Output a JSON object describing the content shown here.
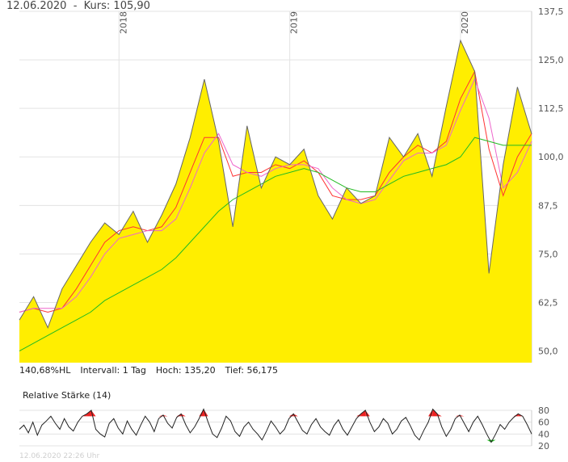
{
  "header": {
    "date": "12.06.2020",
    "separator": "-",
    "price_label": "Kurs: 105,90"
  },
  "info": {
    "range": "140,68%HL",
    "interval": "Intervall: 1 Tag",
    "high": "Hoch: 135,20",
    "low": "Tief: 56,175"
  },
  "rsi_title": "Relative Stärke (14)",
  "footer_timestamp": "12.06.2020 22:26 Uhr",
  "colors": {
    "area": "#ffee00",
    "price_line": "#666666",
    "ma_short": "#ff3333",
    "ma_mid": "#ee66cc",
    "ma_long": "#22bb22",
    "grid": "#e3e3e3",
    "rsi_line": "#222222",
    "rsi_overbought": "#ee2222",
    "rsi_oversold": "#22bb22"
  },
  "chart_data": [
    {
      "type": "area",
      "x_ticks": [
        "2018",
        "2019",
        "2020"
      ],
      "y_ticks": [
        "137,5",
        "125,0",
        "112,5",
        "100,0",
        "87,5",
        "75,0",
        "62,5",
        "50,0"
      ],
      "ylim": [
        47,
        137.5
      ],
      "x": [
        "2017-06",
        "2017-07",
        "2017-08",
        "2017-09",
        "2017-10",
        "2017-11",
        "2017-12",
        "2018-01",
        "2018-02",
        "2018-03",
        "2018-04",
        "2018-05",
        "2018-06",
        "2018-07",
        "2018-08",
        "2018-09",
        "2018-10",
        "2018-11",
        "2018-12",
        "2019-01",
        "2019-02",
        "2019-03",
        "2019-04",
        "2019-05",
        "2019-06",
        "2019-07",
        "2019-08",
        "2019-09",
        "2019-10",
        "2019-11",
        "2019-12",
        "2020-01",
        "2020-02",
        "2020-03",
        "2020-04",
        "2020-05",
        "2020-06"
      ],
      "year_ticks_at": [
        "2018-01",
        "2019-01",
        "2020-01"
      ],
      "series": [
        {
          "values": [
            58,
            64,
            56,
            66,
            72,
            78,
            83,
            80,
            86,
            78,
            85,
            93,
            105,
            120,
            104,
            82,
            108,
            92,
            100,
            98,
            102,
            90,
            84,
            92,
            88,
            90,
            105,
            100,
            106,
            95,
            113,
            130,
            122,
            70,
            98,
            118,
            105.9
          ]
        },
        {
          "values": [
            60,
            61,
            60,
            61,
            66,
            72,
            78,
            81,
            82,
            81,
            82,
            87,
            96,
            105,
            105,
            95,
            96,
            96,
            98,
            97,
            99,
            96,
            90,
            89,
            89,
            90,
            96,
            100,
            103,
            101,
            104,
            115,
            122,
            102,
            90,
            100,
            106
          ]
        },
        {
          "values": [
            60,
            61,
            61,
            61,
            64,
            69,
            75,
            79,
            80,
            81,
            81,
            84,
            92,
            101,
            106,
            98,
            96,
            95,
            97,
            98,
            98,
            97,
            92,
            89,
            88,
            89,
            94,
            99,
            101,
            101,
            103,
            112,
            120,
            110,
            92,
            96,
            104
          ]
        },
        {
          "values": [
            50,
            52,
            54,
            56,
            58,
            60,
            63,
            65,
            67,
            69,
            71,
            74,
            78,
            82,
            86,
            89,
            91,
            93,
            95,
            96,
            97,
            96,
            94,
            92,
            91,
            91,
            93,
            95,
            96,
            97,
            98,
            100,
            105,
            104,
            103,
            103,
            103
          ]
        }
      ]
    },
    {
      "type": "line",
      "yticks": [
        80,
        60,
        40,
        20
      ],
      "ylim": [
        20,
        80
      ],
      "values": [
        48,
        55,
        42,
        60,
        38,
        55,
        62,
        70,
        58,
        48,
        66,
        52,
        45,
        60,
        70,
        74,
        80,
        48,
        40,
        35,
        58,
        66,
        50,
        40,
        62,
        48,
        38,
        55,
        70,
        60,
        44,
        66,
        72,
        58,
        50,
        68,
        74,
        56,
        42,
        52,
        66,
        82,
        60,
        40,
        34,
        50,
        70,
        62,
        44,
        36,
        52,
        60,
        48,
        40,
        30,
        45,
        62,
        52,
        40,
        48,
        66,
        74,
        60,
        46,
        40,
        56,
        66,
        52,
        44,
        38,
        54,
        64,
        48,
        38,
        52,
        66,
        74,
        80,
        60,
        44,
        52,
        66,
        58,
        40,
        48,
        62,
        68,
        54,
        38,
        30,
        46,
        60,
        82,
        74,
        52,
        36,
        48,
        66,
        72,
        58,
        44,
        60,
        70,
        56,
        40,
        26,
        40,
        56,
        48,
        60,
        68,
        74,
        70,
        56,
        40
      ]
    }
  ]
}
